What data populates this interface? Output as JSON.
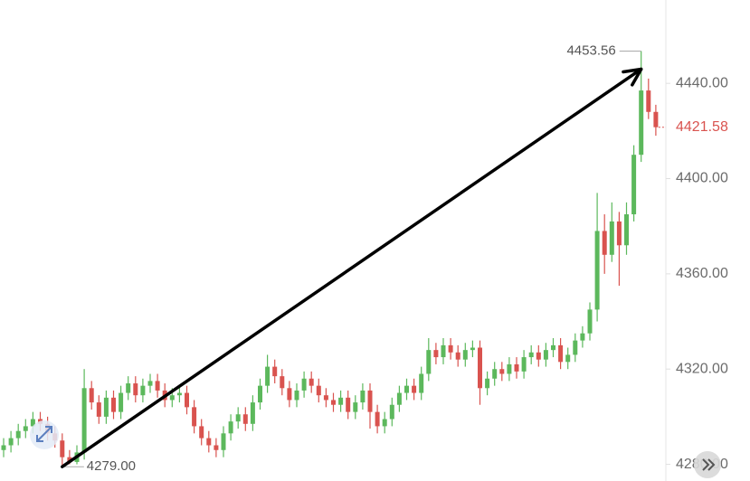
{
  "chart_data": {
    "type": "candlestick",
    "up_color": "#5cb85c",
    "down_color": "#d9534f",
    "open": [
      4286,
      4288,
      4291,
      4294,
      4296,
      4299,
      4297,
      4293,
      4290,
      4283,
      4281,
      4285,
      4312,
      4306,
      4300,
      4308,
      4302,
      4310,
      4314,
      4309,
      4313,
      4315,
      4311,
      4307,
      4309,
      4310,
      4304,
      4296,
      4291,
      4288,
      4286,
      4293,
      4298,
      4301,
      4297,
      4306,
      4313,
      4321,
      4317,
      4312,
      4307,
      4311,
      4316,
      4313,
      4309,
      4307,
      4305,
      4308,
      4302,
      4306,
      4311,
      4302,
      4296,
      4299,
      4305,
      4310,
      4313,
      4310,
      4318,
      4328,
      4325,
      4330,
      4327,
      4324,
      4328,
      4329,
      4312,
      4316,
      4320,
      4318,
      4322,
      4319,
      4325,
      4327,
      4324,
      4328,
      4330,
      4323,
      4326,
      4332,
      4335,
      4345,
      4378,
      4368,
      4382,
      4372,
      4385,
      4410,
      4437,
      4428
    ],
    "high": [
      4291,
      4294,
      4297,
      4299,
      4302,
      4302,
      4300,
      4296,
      4293,
      4286,
      4288,
      4320,
      4315,
      4309,
      4311,
      4311,
      4313,
      4317,
      4317,
      4316,
      4318,
      4318,
      4314,
      4312,
      4313,
      4313,
      4307,
      4299,
      4294,
      4291,
      4296,
      4301,
      4304,
      4304,
      4309,
      4316,
      4326,
      4324,
      4320,
      4315,
      4314,
      4319,
      4319,
      4316,
      4312,
      4310,
      4311,
      4311,
      4309,
      4314,
      4314,
      4305,
      4302,
      4308,
      4313,
      4316,
      4316,
      4321,
      4333,
      4331,
      4333,
      4333,
      4330,
      4331,
      4332,
      4332,
      4319,
      4323,
      4323,
      4325,
      4325,
      4328,
      4330,
      4330,
      4331,
      4333,
      4333,
      4329,
      4335,
      4338,
      4348,
      4394,
      4385,
      4390,
      4386,
      4390,
      4414,
      4453.56,
      4442,
      4431
    ],
    "low": [
      4283,
      4285,
      4288,
      4291,
      4293,
      4294,
      4290,
      4287,
      4279,
      4280,
      4280,
      4282,
      4303,
      4297,
      4297,
      4299,
      4299,
      4307,
      4306,
      4306,
      4310,
      4308,
      4304,
      4304,
      4306,
      4301,
      4293,
      4288,
      4285,
      4283,
      4283,
      4290,
      4295,
      4294,
      4294,
      4303,
      4310,
      4314,
      4309,
      4304,
      4304,
      4308,
      4310,
      4306,
      4304,
      4302,
      4302,
      4299,
      4299,
      4303,
      4295,
      4293,
      4293,
      4296,
      4302,
      4307,
      4307,
      4307,
      4315,
      4322,
      4322,
      4324,
      4321,
      4321,
      4325,
      4305,
      4309,
      4313,
      4315,
      4315,
      4316,
      4316,
      4322,
      4321,
      4321,
      4325,
      4320,
      4320,
      4323,
      4329,
      4332,
      4340,
      4360,
      4365,
      4355,
      4368,
      4382,
      4407,
      4425,
      4418
    ],
    "close": [
      4288,
      4291,
      4294,
      4296,
      4299,
      4297,
      4293,
      4290,
      4283,
      4281,
      4285,
      4312,
      4306,
      4300,
      4308,
      4302,
      4310,
      4314,
      4309,
      4313,
      4315,
      4311,
      4307,
      4309,
      4310,
      4304,
      4296,
      4291,
      4288,
      4286,
      4293,
      4298,
      4301,
      4297,
      4306,
      4313,
      4321,
      4317,
      4312,
      4307,
      4311,
      4316,
      4313,
      4309,
      4307,
      4305,
      4308,
      4302,
      4306,
      4311,
      4302,
      4296,
      4299,
      4305,
      4310,
      4313,
      4310,
      4318,
      4328,
      4325,
      4330,
      4327,
      4324,
      4328,
      4329,
      4312,
      4316,
      4320,
      4318,
      4322,
      4319,
      4325,
      4327,
      4324,
      4328,
      4330,
      4323,
      4326,
      4332,
      4335,
      4345,
      4378,
      4368,
      4382,
      4372,
      4385,
      4410,
      4437,
      4428,
      4421.58
    ],
    "ylim": [
      4273,
      4475
    ],
    "yticks": [
      {
        "value": 4280,
        "label": "4280.00"
      },
      {
        "value": 4320,
        "label": "4320.00"
      },
      {
        "value": 4360,
        "label": "4360.00"
      },
      {
        "value": 4400,
        "label": "4400.00"
      },
      {
        "value": 4440,
        "label": "4440.00"
      }
    ],
    "high_label": "4453.56",
    "low_label": "4279.00",
    "last_price_label": "4421.58"
  }
}
